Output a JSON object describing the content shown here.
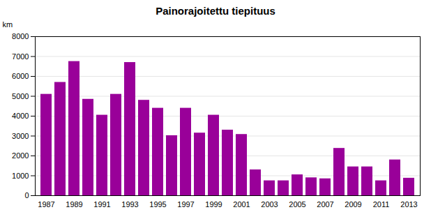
{
  "chart_data": {
    "type": "bar",
    "title": "Painorajoitettu tiepituus",
    "ylabel": "km",
    "categories": [
      "1987",
      null,
      "1989",
      null,
      "1991",
      null,
      "1993",
      null,
      "1995",
      null,
      "1997",
      null,
      "1999",
      null,
      "2001",
      null,
      "2003",
      null,
      "2005",
      null,
      "2007",
      null,
      "2009",
      null,
      "2011",
      null,
      "2013"
    ],
    "values": [
      5100,
      5700,
      6750,
      4850,
      4050,
      5100,
      6700,
      4800,
      4400,
      3020,
      4400,
      3150,
      4050,
      3300,
      3080,
      1300,
      750,
      750,
      1050,
      900,
      850,
      2380,
      1450,
      1450,
      750,
      1800,
      880
    ],
    "color": "#990099",
    "ylim": [
      0,
      8000
    ],
    "yticks": [
      0,
      1000,
      2000,
      3000,
      4000,
      5000,
      6000,
      7000,
      8000
    ],
    "grid": true
  }
}
